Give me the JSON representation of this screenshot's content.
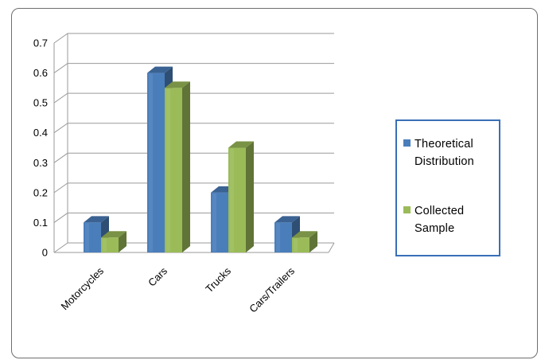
{
  "chart_data": {
    "type": "bar",
    "style": "3d-clustered-column",
    "categories": [
      "Motorcycles",
      "Cars",
      "Trucks",
      "Cars/Trailers"
    ],
    "series": [
      {
        "name": "Theoretical Distribution",
        "color": "#4a7ebb",
        "values": [
          0.1,
          0.6,
          0.2,
          0.1
        ]
      },
      {
        "name": "Collected Sample",
        "color": "#9bbb59",
        "values": [
          0.05,
          0.55,
          0.35,
          0.05
        ]
      }
    ],
    "yticks": [
      "0",
      "0.1",
      "0.2",
      "0.3",
      "0.4",
      "0.5",
      "0.6",
      "0.7"
    ],
    "ylim": [
      0,
      0.7
    ],
    "grid": true,
    "legend_position": "right"
  },
  "legend": {
    "theoretical_label": "Theoretical\nDistribution",
    "collected_label": "Collected\nSample"
  }
}
